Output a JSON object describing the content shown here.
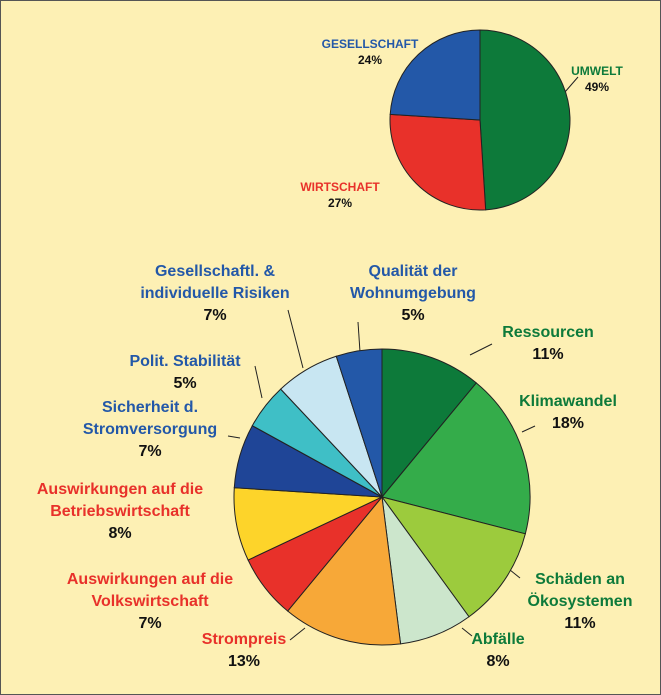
{
  "chart_data": [
    {
      "type": "pie",
      "categories": [
        [
          "UMWELT"
        ],
        [
          "WIRTSCHAFT"
        ],
        [
          "GESELLSCHAFT"
        ]
      ],
      "values": [
        49,
        27,
        24
      ],
      "value_labels": [
        "49%",
        "27%",
        "24%"
      ],
      "colors": [
        "#0d7a3a",
        "#e8312a",
        "#2358a8"
      ],
      "label_colors": [
        "#0d7a3a",
        "#e8312a",
        "#2358a8"
      ]
    },
    {
      "type": "pie",
      "categories": [
        [
          "Ressourcen"
        ],
        [
          "Klimawandel"
        ],
        [
          "Schäden an",
          "Ökosystemen"
        ],
        [
          "Abfälle"
        ],
        [
          "Strompreis"
        ],
        [
          "Auswirkungen auf die",
          "Volkswirtschaft"
        ],
        [
          "Auswirkungen auf die",
          "Betriebswirtschaft"
        ],
        [
          "Sicherheit d.",
          "Stromversorgung"
        ],
        [
          "Polit. Stabilität"
        ],
        [
          "Gesellschaftl. &",
          "individuelle Risiken"
        ],
        [
          "Qualität der",
          "Wohnumgebung"
        ]
      ],
      "values": [
        11,
        18,
        11,
        8,
        13,
        7,
        8,
        7,
        5,
        7,
        5
      ],
      "value_labels": [
        "11%",
        "18%",
        "11%",
        "8%",
        "13%",
        "7%",
        "8%",
        "7%",
        "5%",
        "7%",
        "5%"
      ],
      "colors": [
        "#0d7a3a",
        "#34ac4a",
        "#9ccb3d",
        "#cce6cc",
        "#f7a838",
        "#e8312a",
        "#fdd42a",
        "#1f4597",
        "#3fbfc6",
        "#c8e6f2",
        "#2358a8"
      ],
      "label_colors": [
        "#0d7a3a",
        "#0d7a3a",
        "#0d7a3a",
        "#0d7a3a",
        "#e8312a",
        "#e8312a",
        "#e8312a",
        "#2358a8",
        "#2358a8",
        "#2358a8",
        "#2358a8"
      ]
    }
  ]
}
